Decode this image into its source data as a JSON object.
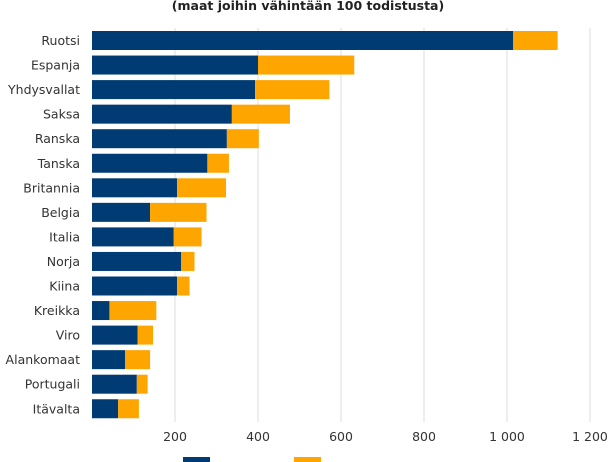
{
  "chart_data": {
    "type": "bar",
    "orientation": "horizontal",
    "stacked": true,
    "subtitle": "(maat joihin vähintään 100 todistusta)",
    "categories": [
      "Ruotsi",
      "Espanja",
      "Yhdysvallat",
      "Saksa",
      "Ranska",
      "Tanska",
      "Britannia",
      "Belgia",
      "Italia",
      "Norja",
      "Kiina",
      "Kreikka",
      "Viro",
      "Alankomaat",
      "Portugali",
      "Itävalta"
    ],
    "series": [
      {
        "color": "#003b73",
        "values": [
          1015,
          400,
          393,
          337,
          325,
          278,
          205,
          140,
          197,
          215,
          205,
          42,
          110,
          80,
          108,
          63
        ]
      },
      {
        "color": "#ffa500",
        "values": [
          107,
          232,
          179,
          140,
          77,
          52,
          118,
          136,
          67,
          32,
          30,
          113,
          37,
          60,
          26,
          50
        ]
      }
    ],
    "xticks": [
      "200",
      "400",
      "600",
      "800",
      "1 000",
      "1 200"
    ],
    "tick_values": [
      200,
      400,
      600,
      800,
      1000,
      1200
    ],
    "xlim": [
      0,
      1200
    ],
    "grid": "vertical",
    "legend": "bottom"
  }
}
